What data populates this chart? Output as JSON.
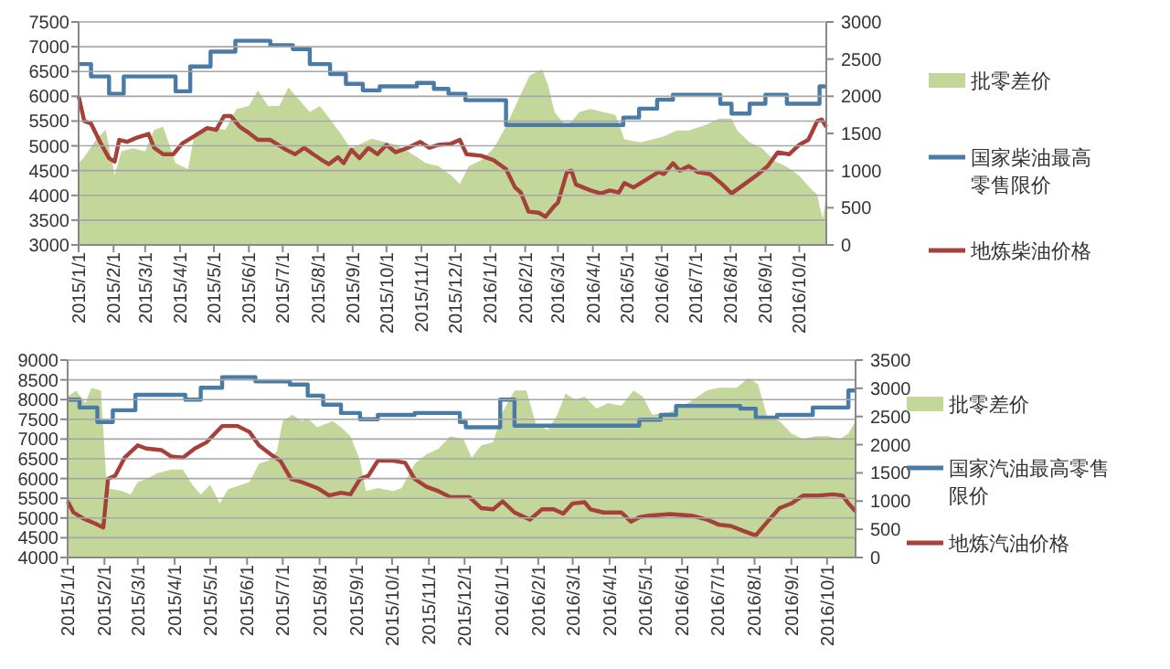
{
  "chart_data": [
    {
      "type": "line",
      "legend": "right",
      "grid": "y",
      "xlim": [
        "2015-01-01",
        "2016-10-25"
      ],
      "xticks": [
        {
          "value": "2015-01-01",
          "label": "2015/1/1"
        },
        {
          "value": "2015-02-01",
          "label": "2015/2/1"
        },
        {
          "value": "2015-03-01",
          "label": "2015/3/1"
        },
        {
          "value": "2015-04-01",
          "label": "2015/4/1"
        },
        {
          "value": "2015-05-01",
          "label": "2015/5/1"
        },
        {
          "value": "2015-06-01",
          "label": "2015/6/1"
        },
        {
          "value": "2015-07-01",
          "label": "2015/7/1"
        },
        {
          "value": "2015-08-01",
          "label": "2015/8/1"
        },
        {
          "value": "2015-09-01",
          "label": "2015/9/1"
        },
        {
          "value": "2015-10-01",
          "label": "2015/10/1"
        },
        {
          "value": "2015-11-01",
          "label": "2015/11/1"
        },
        {
          "value": "2015-12-01",
          "label": "2015/12/1"
        },
        {
          "value": "2016-01-01",
          "label": "2016/1/1"
        },
        {
          "value": "2016-02-01",
          "label": "2016/2/1"
        },
        {
          "value": "2016-03-01",
          "label": "2016/3/1"
        },
        {
          "value": "2016-04-01",
          "label": "2016/4/1"
        },
        {
          "value": "2016-05-01",
          "label": "2016/5/1"
        },
        {
          "value": "2016-06-01",
          "label": "2016/6/1"
        },
        {
          "value": "2016-07-01",
          "label": "2016/7/1"
        },
        {
          "value": "2016-08-01",
          "label": "2016/8/1"
        },
        {
          "value": "2016-09-01",
          "label": "2016/9/1"
        },
        {
          "value": "2016-10-01",
          "label": "2016/10/1"
        }
      ],
      "ylim": [
        3000,
        7500
      ],
      "yticks": [
        3000,
        3500,
        4000,
        4500,
        5000,
        5500,
        6000,
        6500,
        7000,
        7500
      ],
      "y2lim": [
        0,
        3000
      ],
      "y2ticks": [
        0,
        500,
        1000,
        1500,
        2000,
        2500,
        3000
      ],
      "series": [
        {
          "name": "批零差价",
          "type": "area",
          "axis": "y2",
          "color": "#c4d79b",
          "x": [
            "2015-01-01",
            "2015-01-06",
            "2015-01-17",
            "2015-01-25",
            "2015-02-02",
            "2015-02-08",
            "2015-02-18",
            "2015-03-01",
            "2015-03-09",
            "2015-03-17",
            "2015-03-28",
            "2015-04-08",
            "2015-04-14",
            "2015-04-27",
            "2015-05-11",
            "2015-05-21",
            "2015-06-01",
            "2015-06-09",
            "2015-06-18",
            "2015-06-28",
            "2015-07-06",
            "2015-07-15",
            "2015-07-25",
            "2015-08-03",
            "2015-08-13",
            "2015-08-21",
            "2015-08-30",
            "2015-09-07",
            "2015-09-18",
            "2015-09-28",
            "2015-10-09",
            "2015-10-20",
            "2015-11-05",
            "2015-11-16",
            "2015-11-27",
            "2015-12-05",
            "2015-12-13",
            "2015-12-24",
            "2016-01-04",
            "2016-01-15",
            "2016-01-26",
            "2016-02-05",
            "2016-02-16",
            "2016-02-21",
            "2016-02-27",
            "2016-03-09",
            "2016-03-20",
            "2016-03-30",
            "2016-04-10",
            "2016-04-21",
            "2016-04-29",
            "2016-05-13",
            "2016-05-24",
            "2016-06-03",
            "2016-06-14",
            "2016-06-25",
            "2016-07-11",
            "2016-07-22",
            "2016-08-02",
            "2016-08-07",
            "2016-08-18",
            "2016-08-29",
            "2016-09-09",
            "2016-09-20",
            "2016-10-01",
            "2016-10-11",
            "2016-10-17",
            "2016-10-19",
            "2016-10-22",
            "2016-10-25"
          ],
          "values": [
            1100,
            1180,
            1430,
            1550,
            940,
            1260,
            1300,
            1260,
            1550,
            1590,
            1100,
            1020,
            1510,
            1590,
            1550,
            1830,
            1870,
            2080,
            1870,
            1870,
            2120,
            1960,
            1790,
            1870,
            1670,
            1510,
            1300,
            1350,
            1430,
            1390,
            1350,
            1260,
            1100,
            1060,
            940,
            820,
            1060,
            1140,
            1300,
            1590,
            1960,
            2280,
            2360,
            2160,
            1790,
            1580,
            1790,
            1830,
            1790,
            1750,
            1420,
            1380,
            1420,
            1460,
            1540,
            1540,
            1620,
            1700,
            1700,
            1540,
            1380,
            1300,
            1130,
            1050,
            930,
            760,
            680,
            520,
            350,
            680
          ]
        },
        {
          "name": "国家柴油最高零售限价",
          "type": "step",
          "color": "#4a7ba6",
          "x": [
            "2015-01-01",
            "2015-01-12",
            "2015-01-28",
            "2015-02-10",
            "2015-03-28",
            "2015-04-10",
            "2015-04-28",
            "2015-05-20",
            "2015-06-20",
            "2015-07-10",
            "2015-07-25",
            "2015-08-12",
            "2015-08-26",
            "2015-09-10",
            "2015-09-25",
            "2015-10-28",
            "2015-11-12",
            "2015-11-25",
            "2015-12-10",
            "2016-01-15",
            "2016-04-28",
            "2016-05-12",
            "2016-05-28",
            "2016-06-11",
            "2016-07-23",
            "2016-08-02",
            "2016-08-18",
            "2016-09-01",
            "2016-09-20",
            "2016-10-19",
            "2016-10-25"
          ],
          "values": [
            6650,
            6400,
            6050,
            6400,
            6100,
            6600,
            6900,
            7120,
            7030,
            6950,
            6650,
            6450,
            6250,
            6120,
            6200,
            6270,
            6150,
            6050,
            5920,
            5420,
            5570,
            5750,
            5930,
            6030,
            5850,
            5650,
            5850,
            6030,
            5850,
            6200,
            6200
          ]
        },
        {
          "name": "地炼柴油价格",
          "type": "line",
          "color": "#a5403a",
          "x": [
            "2015-01-01",
            "2015-01-06",
            "2015-01-12",
            "2015-01-20",
            "2015-01-28",
            "2015-02-02",
            "2015-02-06",
            "2015-02-13",
            "2015-02-21",
            "2015-03-04",
            "2015-03-09",
            "2015-03-17",
            "2015-03-26",
            "2015-04-03",
            "2015-04-14",
            "2015-04-25",
            "2015-05-03",
            "2015-05-10",
            "2015-05-16",
            "2015-05-24",
            "2015-06-01",
            "2015-06-09",
            "2015-06-20",
            "2015-07-04",
            "2015-07-12",
            "2015-07-20",
            "2015-07-28",
            "2015-08-05",
            "2015-08-11",
            "2015-08-19",
            "2015-08-24",
            "2015-08-31",
            "2015-09-07",
            "2015-09-15",
            "2015-09-23",
            "2015-10-01",
            "2015-10-09",
            "2015-10-20",
            "2015-10-31",
            "2015-11-08",
            "2015-11-16",
            "2015-11-27",
            "2015-12-05",
            "2015-12-11",
            "2015-12-24",
            "2016-01-04",
            "2016-01-15",
            "2016-01-23",
            "2016-01-28",
            "2016-02-04",
            "2016-02-13",
            "2016-02-19",
            "2016-02-27",
            "2016-03-01",
            "2016-03-09",
            "2016-03-13",
            "2016-03-17",
            "2016-03-30",
            "2016-04-08",
            "2016-04-16",
            "2016-04-24",
            "2016-04-29",
            "2016-05-07",
            "2016-05-18",
            "2016-05-29",
            "2016-06-03",
            "2016-06-11",
            "2016-06-17",
            "2016-06-25",
            "2016-07-03",
            "2016-07-14",
            "2016-07-25",
            "2016-08-02",
            "2016-08-13",
            "2016-08-24",
            "2016-09-03",
            "2016-09-12",
            "2016-09-22",
            "2016-10-01",
            "2016-10-09",
            "2016-10-17",
            "2016-10-21",
            "2016-10-25"
          ],
          "values": [
            6000,
            5500,
            5450,
            5080,
            4750,
            4680,
            5120,
            5080,
            5160,
            5240,
            4960,
            4830,
            4830,
            5050,
            5200,
            5360,
            5320,
            5600,
            5600,
            5380,
            5260,
            5120,
            5120,
            4920,
            4830,
            4960,
            4830,
            4710,
            4630,
            4770,
            4650,
            4920,
            4750,
            4960,
            4830,
            5020,
            4870,
            4960,
            5080,
            4960,
            5020,
            5040,
            5120,
            4830,
            4800,
            4710,
            4530,
            4160,
            4060,
            3670,
            3650,
            3570,
            3790,
            3850,
            4470,
            4500,
            4220,
            4100,
            4040,
            4100,
            4060,
            4250,
            4160,
            4310,
            4470,
            4430,
            4650,
            4500,
            4590,
            4470,
            4430,
            4220,
            4040,
            4220,
            4400,
            4590,
            4870,
            4830,
            5020,
            5120,
            5500,
            5530,
            5380
          ]
        }
      ]
    },
    {
      "type": "line",
      "legend": "right",
      "grid": "y",
      "xlim": [
        "2015-01-01",
        "2016-10-25"
      ],
      "xticks": [
        {
          "value": "2015-01-01",
          "label": "2015/1/1"
        },
        {
          "value": "2015-02-01",
          "label": "2015/2/1"
        },
        {
          "value": "2015-03-01",
          "label": "2015/3/1"
        },
        {
          "value": "2015-04-01",
          "label": "2015/4/1"
        },
        {
          "value": "2015-05-01",
          "label": "2015/5/1"
        },
        {
          "value": "2015-06-01",
          "label": "2015/6/1"
        },
        {
          "value": "2015-07-01",
          "label": "2015/7/1"
        },
        {
          "value": "2015-08-01",
          "label": "2015/8/1"
        },
        {
          "value": "2015-09-01",
          "label": "2015/9/1"
        },
        {
          "value": "2015-10-01",
          "label": "2015/10/1"
        },
        {
          "value": "2015-11-01",
          "label": "2015/11/1"
        },
        {
          "value": "2015-12-01",
          "label": "2015/12/1"
        },
        {
          "value": "2016-01-01",
          "label": "2016/1/1"
        },
        {
          "value": "2016-02-01",
          "label": "2016/2/1"
        },
        {
          "value": "2016-03-01",
          "label": "2016/3/1"
        },
        {
          "value": "2016-04-01",
          "label": "2016/4/1"
        },
        {
          "value": "2016-05-01",
          "label": "2016/5/1"
        },
        {
          "value": "2016-06-01",
          "label": "2016/6/1"
        },
        {
          "value": "2016-07-01",
          "label": "2016/7/1"
        },
        {
          "value": "2016-08-01",
          "label": "2016/8/1"
        },
        {
          "value": "2016-09-01",
          "label": "2016/9/1"
        },
        {
          "value": "2016-10-01",
          "label": "2016/10/1"
        }
      ],
      "ylim": [
        4000,
        9000
      ],
      "yticks": [
        4000,
        4500,
        5000,
        5500,
        6000,
        6500,
        7000,
        7500,
        8000,
        8500,
        9000
      ],
      "y2lim": [
        0,
        3500
      ],
      "y2ticks": [
        0,
        500,
        1000,
        1500,
        2000,
        2500,
        3000,
        3500
      ],
      "series": [
        {
          "name": "批零差价",
          "type": "area",
          "axis": "y2",
          "color": "#c4d79b",
          "x": [
            "2015-01-01",
            "2015-01-08",
            "2015-01-16",
            "2015-01-21",
            "2015-01-29",
            "2015-02-03",
            "2015-02-16",
            "2015-02-23",
            "2015-03-01",
            "2015-03-08",
            "2015-03-18",
            "2015-03-29",
            "2015-04-08",
            "2015-04-16",
            "2015-04-23",
            "2015-05-01",
            "2015-05-09",
            "2015-05-16",
            "2015-05-27",
            "2015-06-03",
            "2015-06-11",
            "2015-06-19",
            "2015-06-26",
            "2015-07-01",
            "2015-07-09",
            "2015-07-17",
            "2015-07-22",
            "2015-07-30",
            "2015-08-12",
            "2015-08-19",
            "2015-08-27",
            "2015-09-04",
            "2015-09-09",
            "2015-09-19",
            "2015-10-02",
            "2015-10-09",
            "2015-10-20",
            "2015-10-30",
            "2015-11-09",
            "2015-11-19",
            "2015-11-30",
            "2015-12-07",
            "2015-12-15",
            "2015-12-25",
            "2016-01-02",
            "2016-01-12",
            "2016-01-22",
            "2016-01-30",
            "2016-02-09",
            "2016-02-17",
            "2016-02-24",
            "2016-03-03",
            "2016-03-11",
            "2016-03-21",
            "2016-03-31",
            "2016-04-11",
            "2016-04-21",
            "2016-04-29",
            "2016-05-07",
            "2016-05-22",
            "2016-06-06",
            "2016-06-22",
            "2016-07-02",
            "2016-07-17",
            "2016-07-27",
            "2016-08-04",
            "2016-08-12",
            "2016-08-22",
            "2016-09-01",
            "2016-09-11",
            "2016-09-21",
            "2016-10-02",
            "2016-10-12",
            "2016-10-19",
            "2016-10-25"
          ],
          "values": [
            2850,
            2960,
            2740,
            3010,
            2960,
            1230,
            1180,
            1120,
            1340,
            1390,
            1500,
            1560,
            1560,
            1290,
            1120,
            1290,
            960,
            1210,
            1290,
            1340,
            1660,
            1720,
            1880,
            2420,
            2530,
            2420,
            2470,
            2310,
            2420,
            2310,
            2150,
            1720,
            1180,
            1230,
            1180,
            1230,
            1660,
            1830,
            1930,
            2150,
            2100,
            1770,
            1990,
            2040,
            2580,
            2960,
            2960,
            2370,
            2260,
            2530,
            2910,
            2800,
            2850,
            2640,
            2740,
            2690,
            2960,
            2850,
            2530,
            2580,
            2740,
            2960,
            3010,
            3010,
            3180,
            3070,
            2470,
            2420,
            2200,
            2100,
            2150,
            2150,
            2100,
            2200,
            2420
          ]
        },
        {
          "name": "国家汽油最高零售限价",
          "type": "step",
          "color": "#4a7ba6",
          "x": [
            "2015-01-01",
            "2015-01-11",
            "2015-01-26",
            "2015-02-08",
            "2015-02-27",
            "2015-04-10",
            "2015-04-23",
            "2015-05-11",
            "2015-06-08",
            "2015-07-07",
            "2015-07-22",
            "2015-08-04",
            "2015-08-19",
            "2015-09-04",
            "2015-09-19",
            "2015-10-20",
            "2015-11-27",
            "2015-12-02",
            "2015-12-31",
            "2016-01-12",
            "2016-04-26",
            "2016-05-14",
            "2016-05-27",
            "2016-07-20",
            "2016-08-02",
            "2016-08-20",
            "2016-09-19",
            "2016-10-19",
            "2016-10-25"
          ],
          "values": [
            8000,
            7800,
            7430,
            7730,
            8120,
            8000,
            8300,
            8570,
            8460,
            8380,
            8100,
            7870,
            7660,
            7500,
            7610,
            7660,
            7430,
            7300,
            8000,
            7340,
            7490,
            7610,
            7840,
            7770,
            7540,
            7610,
            7800,
            8230,
            8230
          ]
        },
        {
          "name": "地炼汽油价格",
          "type": "line",
          "color": "#a5403a",
          "x": [
            "2015-01-01",
            "2015-01-06",
            "2015-01-14",
            "2015-01-24",
            "2015-01-31",
            "2015-02-04",
            "2015-02-10",
            "2015-02-18",
            "2015-03-01",
            "2015-03-08",
            "2015-03-21",
            "2015-03-29",
            "2015-04-08",
            "2015-04-18",
            "2015-04-28",
            "2015-05-11",
            "2015-05-24",
            "2015-06-03",
            "2015-06-11",
            "2015-06-21",
            "2015-06-29",
            "2015-07-08",
            "2015-07-17",
            "2015-07-30",
            "2015-08-09",
            "2015-08-19",
            "2015-08-27",
            "2015-09-04",
            "2015-09-11",
            "2015-09-19",
            "2015-10-02",
            "2015-10-12",
            "2015-10-20",
            "2015-10-30",
            "2015-11-09",
            "2015-11-19",
            "2015-12-05",
            "2015-12-15",
            "2015-12-25",
            "2016-01-02",
            "2016-01-12",
            "2016-01-25",
            "2016-02-04",
            "2016-02-14",
            "2016-02-22",
            "2016-03-01",
            "2016-03-11",
            "2016-03-16",
            "2016-03-27",
            "2016-04-11",
            "2016-04-19",
            "2016-04-26",
            "2016-05-04",
            "2016-05-22",
            "2016-06-09",
            "2016-06-22",
            "2016-07-02",
            "2016-07-12",
            "2016-07-22",
            "2016-08-02",
            "2016-08-12",
            "2016-08-22",
            "2016-09-01",
            "2016-09-11",
            "2016-09-24",
            "2016-10-06",
            "2016-10-14",
            "2016-10-19",
            "2016-10-25"
          ],
          "values": [
            5420,
            5140,
            4990,
            4860,
            4760,
            5990,
            6070,
            6530,
            6840,
            6760,
            6720,
            6560,
            6530,
            6760,
            6920,
            7330,
            7330,
            7180,
            6840,
            6610,
            6450,
            5990,
            5910,
            5760,
            5570,
            5640,
            5600,
            5990,
            6070,
            6450,
            6450,
            6400,
            5990,
            5790,
            5680,
            5530,
            5530,
            5250,
            5220,
            5420,
            5140,
            4960,
            5220,
            5220,
            5110,
            5370,
            5400,
            5220,
            5140,
            5140,
            4910,
            5020,
            5060,
            5100,
            5060,
            4960,
            4830,
            4800,
            4680,
            4560,
            4910,
            5250,
            5370,
            5570,
            5570,
            5600,
            5570,
            5370,
            5170
          ]
        }
      ]
    }
  ]
}
